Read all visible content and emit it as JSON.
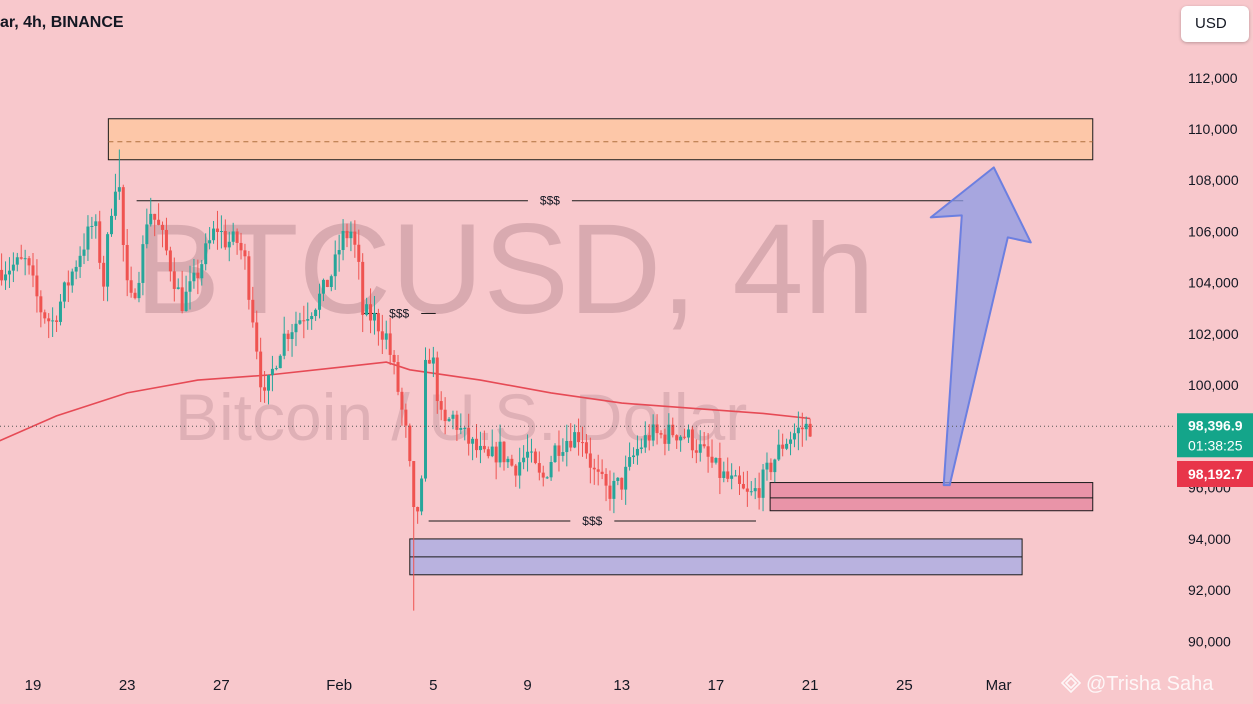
{
  "header": {
    "title": "ar, 4h, BINANCE"
  },
  "currency_button": "USD",
  "watermark": {
    "line1": "BTCUSD, 4h",
    "line2": "Bitcoin / U.S. Dollar"
  },
  "liquidity_labels": [
    "$$$",
    "$$$",
    "$$$"
  ],
  "credit": {
    "text": "@Trisha Saha",
    "icon": "binance-square-icon"
  },
  "colors": {
    "background": "#f8c8cc",
    "up_candle": "#26a69a",
    "down_candle": "#ef5350",
    "ma_line": "#e64a55",
    "supply_zone": "#fdc7a8",
    "demand_zone": "#b9b2df",
    "order_block": "#e994a8",
    "arrow": "#8c9be6",
    "last_price_tag": "#14a58a",
    "bid_tag": "#e8354a"
  },
  "chart_data": {
    "type": "candlestick",
    "symbol": "BTCUSD",
    "timeframe": "4h",
    "exchange": "BINANCE",
    "y_ticks": [
      "112,000",
      "110,000",
      "108,000",
      "106,000",
      "104,000",
      "102,000",
      "100,000",
      "96,000",
      "94,000",
      "92,000",
      "90,000"
    ],
    "y_tick_values": [
      112000,
      110000,
      108000,
      106000,
      104000,
      102000,
      100000,
      96000,
      94000,
      92000,
      90000
    ],
    "x_ticks": [
      "19",
      "23",
      "27",
      "Feb",
      "5",
      "9",
      "13",
      "17",
      "21",
      "25",
      "Mar"
    ],
    "x_tick_days": [
      0,
      4,
      8,
      13,
      17,
      21,
      25,
      29,
      33,
      37,
      41
    ],
    "ylim": [
      89000,
      113500
    ],
    "price_labels": {
      "last": {
        "text": "98,396.9",
        "value": 98396.9
      },
      "countdown": "01:38:25",
      "bid": {
        "text": "98,192.7",
        "value": 98192.7
      }
    },
    "close_path": [
      [
        -1.5,
        104500
      ],
      [
        -0.3,
        104800
      ],
      [
        0.3,
        103000
      ],
      [
        0.8,
        102400
      ],
      [
        1.4,
        103800
      ],
      [
        2.0,
        105200
      ],
      [
        2.6,
        106400
      ],
      [
        3.0,
        104000
      ],
      [
        3.3,
        106800
      ],
      [
        3.6,
        108500
      ],
      [
        3.9,
        104500
      ],
      [
        4.1,
        103000
      ],
      [
        4.6,
        104800
      ],
      [
        4.9,
        107000
      ],
      [
        5.4,
        106000
      ],
      [
        5.8,
        104800
      ],
      [
        6.3,
        103200
      ],
      [
        6.8,
        103900
      ],
      [
        7.2,
        104900
      ],
      [
        7.8,
        106200
      ],
      [
        8.2,
        105600
      ],
      [
        8.7,
        105600
      ],
      [
        9.0,
        104800
      ],
      [
        9.4,
        102300
      ],
      [
        9.8,
        99300
      ],
      [
        10.3,
        101000
      ],
      [
        10.7,
        102000
      ],
      [
        11.3,
        102600
      ],
      [
        11.8,
        103000
      ],
      [
        12.3,
        103600
      ],
      [
        12.8,
        104600
      ],
      [
        13.1,
        105700
      ],
      [
        13.5,
        106000
      ],
      [
        13.8,
        104800
      ],
      [
        14.0,
        102800
      ],
      [
        14.5,
        102600
      ],
      [
        15.0,
        101900
      ],
      [
        15.4,
        100300
      ],
      [
        15.9,
        97800
      ],
      [
        16.2,
        94500
      ],
      [
        16.5,
        96000
      ],
      [
        16.7,
        101500
      ],
      [
        17.0,
        100800
      ],
      [
        17.4,
        98200
      ],
      [
        17.8,
        98800
      ],
      [
        18.3,
        98000
      ],
      [
        18.8,
        97500
      ],
      [
        19.3,
        97000
      ],
      [
        19.8,
        97500
      ],
      [
        20.4,
        96800
      ],
      [
        21.0,
        97300
      ],
      [
        21.6,
        96200
      ],
      [
        22.2,
        97600
      ],
      [
        22.8,
        98000
      ],
      [
        23.3,
        98100
      ],
      [
        23.8,
        96600
      ],
      [
        24.4,
        95800
      ],
      [
        25.0,
        96200
      ],
      [
        25.6,
        97400
      ],
      [
        26.2,
        98100
      ],
      [
        26.7,
        98000
      ],
      [
        27.2,
        98200
      ],
      [
        27.8,
        98000
      ],
      [
        28.4,
        97400
      ],
      [
        29.1,
        96600
      ],
      [
        29.8,
        96100
      ],
      [
        30.4,
        95600
      ],
      [
        30.9,
        96100
      ],
      [
        31.4,
        97000
      ],
      [
        31.9,
        97800
      ],
      [
        32.3,
        98100
      ],
      [
        32.6,
        98300
      ],
      [
        33.0,
        98400
      ]
    ],
    "moving_average": [
      [
        -1.5,
        97800
      ],
      [
        1.0,
        98800
      ],
      [
        4.0,
        99700
      ],
      [
        7.0,
        100200
      ],
      [
        10.0,
        100400
      ],
      [
        13.0,
        100700
      ],
      [
        15.0,
        100900
      ],
      [
        16.0,
        100600
      ],
      [
        19.0,
        100200
      ],
      [
        22.0,
        99700
      ],
      [
        25.0,
        99300
      ],
      [
        28.0,
        99100
      ],
      [
        31.0,
        98900
      ],
      [
        33.0,
        98700
      ]
    ],
    "events": {
      "high_day": 3.6,
      "high": 109200,
      "low_day": 16.2,
      "low": 91200
    },
    "zones": [
      {
        "name": "supply",
        "from_day": 3.2,
        "to_day": 45.0,
        "top": 110400,
        "bottom": 108800,
        "mid": 109500
      },
      {
        "name": "order-block",
        "from_day": 31.3,
        "to_day": 45.0,
        "top": 96200,
        "bottom": 95100,
        "mid": 95600
      },
      {
        "name": "demand",
        "from_day": 16.0,
        "to_day": 42.0,
        "top": 94000,
        "bottom": 92600,
        "mid": 93300
      }
    ],
    "liquidity_lines": [
      {
        "from_day": 4.4,
        "to_day": 39.5,
        "value": 107200
      },
      {
        "from_day": 14.0,
        "to_day": 17.1,
        "value": 102800
      },
      {
        "from_day": 16.8,
        "to_day": 30.7,
        "value": 94700
      }
    ],
    "projection_arrow": {
      "from_day": 38.8,
      "from_value": 96100,
      "to_day": 40.8,
      "to_value": 108500
    }
  }
}
